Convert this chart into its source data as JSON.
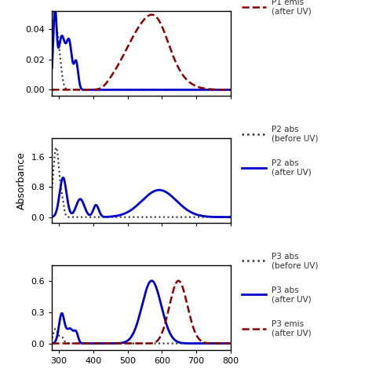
{
  "xmin": 280,
  "xmax": 800,
  "xticks": [
    300,
    400,
    500,
    600,
    700,
    800
  ],
  "panel1": {
    "yticks": [
      0.0,
      0.02,
      0.04
    ],
    "ylim": [
      -0.004,
      0.052
    ],
    "legend": [
      {
        "label": "P1 emis\n(after UV)",
        "color": "#8b0000",
        "ls": "dashed",
        "lw": 1.8
      }
    ]
  },
  "panel2": {
    "yticks": [
      0.0,
      0.8,
      1.6
    ],
    "ylim": [
      -0.15,
      2.1
    ],
    "legend": [
      {
        "label": "P2 abs\n(before UV)",
        "color": "#333333",
        "ls": "dotted",
        "lw": 1.8
      },
      {
        "label": "P2 abs\n(after UV)",
        "color": "#0000cc",
        "ls": "solid",
        "lw": 2.0
      }
    ]
  },
  "panel3": {
    "yticks": [
      0.0,
      0.3,
      0.6
    ],
    "ylim": [
      -0.06,
      0.75
    ],
    "legend": [
      {
        "label": "P3 abs\n(before UV)",
        "color": "#333333",
        "ls": "dotted",
        "lw": 1.8
      },
      {
        "label": "P3 abs\n(after UV)",
        "color": "#0000cc",
        "ls": "solid",
        "lw": 2.0
      },
      {
        "label": "P3 emis\n(after UV)",
        "color": "#8b0000",
        "ls": "dashed",
        "lw": 1.8
      }
    ]
  },
  "bg_color": "#ffffff",
  "axis_color": "#000000",
  "ylabel": "Absorbance"
}
